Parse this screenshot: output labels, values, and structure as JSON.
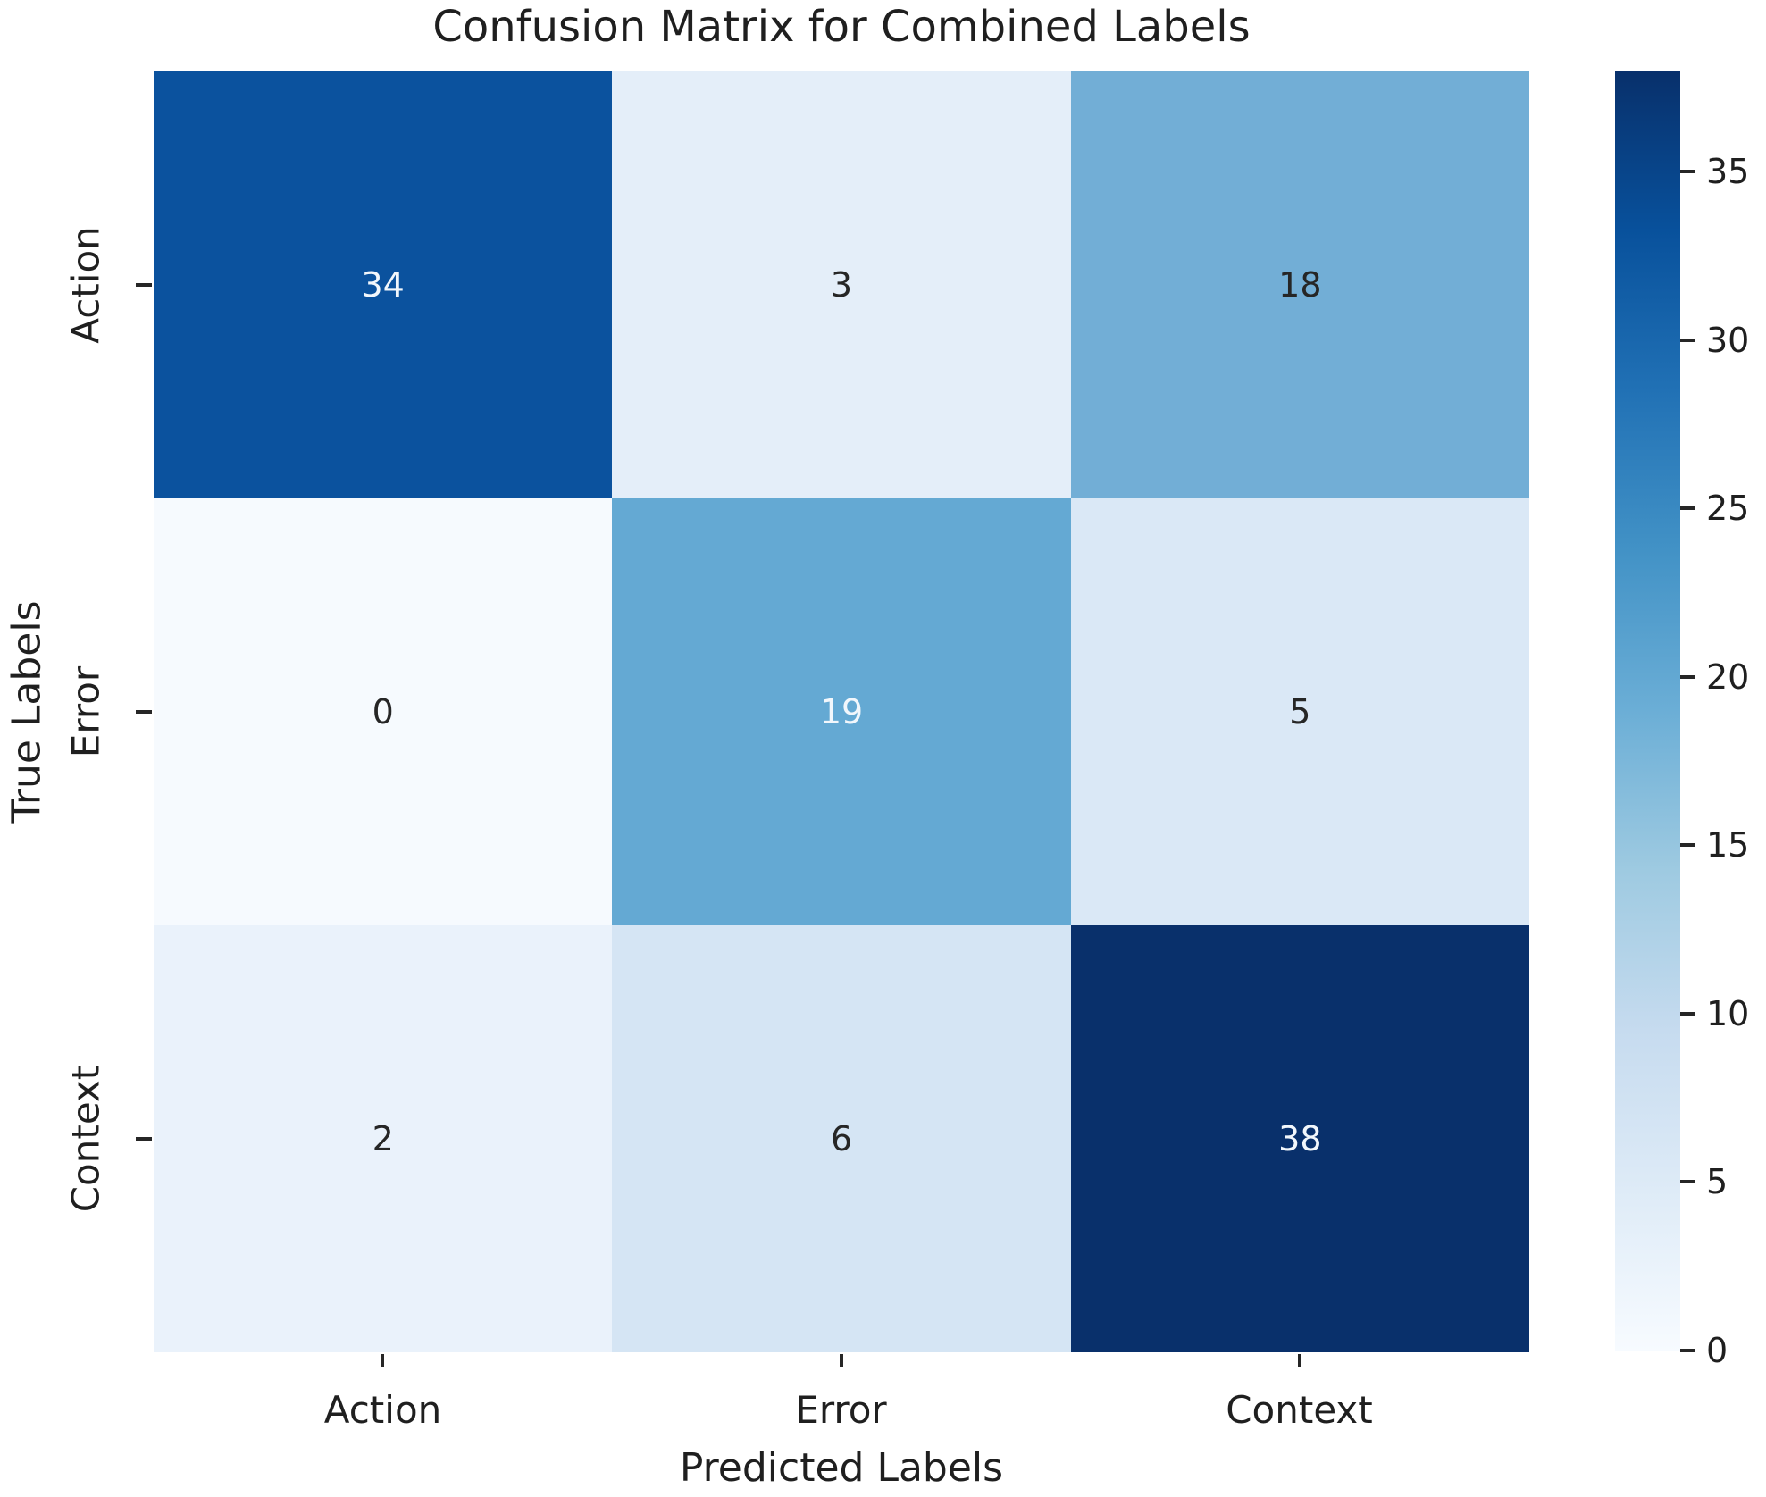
{
  "figure": {
    "title": "Confusion Matrix for Combined Labels",
    "background": "#ffffff"
  },
  "chart_data": {
    "type": "heatmap",
    "title": "Confusion Matrix for Combined Labels",
    "xlabel": "Predicted Labels",
    "ylabel": "True Labels",
    "x_ticklabels": [
      "Action",
      "Error",
      "Context"
    ],
    "y_ticklabels": [
      "Action",
      "Error",
      "Context"
    ],
    "matrix": [
      [
        34,
        3,
        18
      ],
      [
        0,
        19,
        5
      ],
      [
        2,
        6,
        38
      ]
    ],
    "colormap": "Blues",
    "vmin": 0,
    "vmax": 38,
    "grid": false,
    "cells": [
      {
        "row": "Action",
        "col": "Action",
        "value": "34",
        "bg": "#0b529e",
        "fg": "#f2f7fc"
      },
      {
        "row": "Action",
        "col": "Error",
        "value": "3",
        "bg": "#e4eef9",
        "fg": "#262626"
      },
      {
        "row": "Action",
        "col": "Context",
        "value": "18",
        "bg": "#72aed6",
        "fg": "#262626"
      },
      {
        "row": "Error",
        "col": "Action",
        "value": "0",
        "bg": "#f6fafe",
        "fg": "#262626"
      },
      {
        "row": "Error",
        "col": "Error",
        "value": "19",
        "bg": "#64a9d3",
        "fg": "#f2f7fc"
      },
      {
        "row": "Error",
        "col": "Context",
        "value": "5",
        "bg": "#dae8f6",
        "fg": "#262626"
      },
      {
        "row": "Context",
        "col": "Action",
        "value": "2",
        "bg": "#eaf2fb",
        "fg": "#262626"
      },
      {
        "row": "Context",
        "col": "Error",
        "value": "6",
        "bg": "#d5e5f4",
        "fg": "#262626"
      },
      {
        "row": "Context",
        "col": "Context",
        "value": "38",
        "bg": "#09306b",
        "fg": "#f2f7fc"
      }
    ],
    "colorbar": {
      "position": "right",
      "ticks": [
        0,
        5,
        10,
        15,
        20,
        25,
        30,
        35
      ],
      "gradient_stops": [
        "#f7fbff",
        "#deebf7",
        "#c6dbef",
        "#9ecae1",
        "#6baed6",
        "#4292c6",
        "#2171b5",
        "#08519c",
        "#08306b"
      ]
    }
  }
}
